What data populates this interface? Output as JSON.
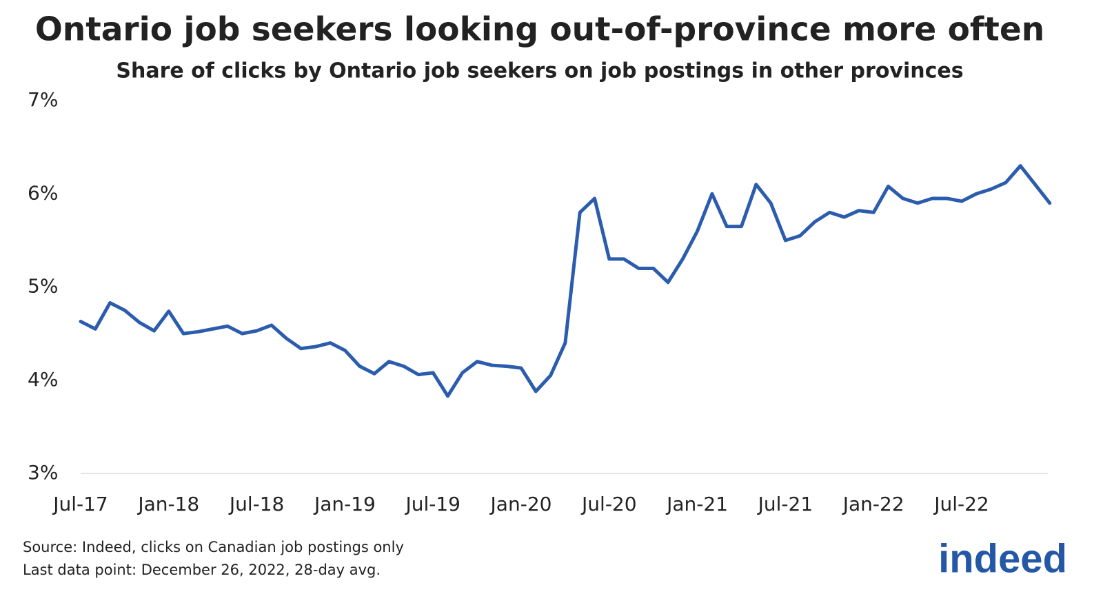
{
  "chart_data": {
    "type": "line",
    "title": "Ontario job seekers looking out-of-province more often",
    "subtitle": "Share of clicks by Ontario job seekers on job postings in other provinces",
    "categories": [
      "Jul-17",
      null,
      null,
      null,
      null,
      null,
      "Jan-18",
      null,
      null,
      null,
      null,
      null,
      "Jul-18",
      null,
      null,
      null,
      null,
      null,
      "Jan-19",
      null,
      null,
      null,
      null,
      null,
      "Jul-19",
      null,
      null,
      null,
      null,
      null,
      "Jan-20",
      null,
      null,
      null,
      null,
      null,
      "Jul-20",
      null,
      null,
      null,
      null,
      null,
      "Jan-21",
      null,
      null,
      null,
      null,
      null,
      "Jul-21",
      null,
      null,
      null,
      null,
      null,
      "Jan-22",
      null,
      null,
      null,
      null,
      null,
      "Jul-22",
      null,
      null,
      null,
      null,
      null,
      null
    ],
    "series": [
      {
        "name": "Share of clicks",
        "color": "#2b5cad",
        "values": [
          4.63,
          4.55,
          4.83,
          4.75,
          4.62,
          4.53,
          4.74,
          4.5,
          4.52,
          4.55,
          4.58,
          4.5,
          4.53,
          4.59,
          4.45,
          4.34,
          4.36,
          4.4,
          4.32,
          4.15,
          4.07,
          4.2,
          4.15,
          4.06,
          4.08,
          3.83,
          4.08,
          4.2,
          4.16,
          4.15,
          4.13,
          3.88,
          4.05,
          4.4,
          5.8,
          5.95,
          5.3,
          5.3,
          5.2,
          5.2,
          5.05,
          5.3,
          5.6,
          6.0,
          5.65,
          5.65,
          6.1,
          5.9,
          5.5,
          5.55,
          5.7,
          5.8,
          5.75,
          5.82,
          5.8,
          6.08,
          5.95,
          5.9,
          5.95,
          5.95,
          5.92,
          6.0,
          6.05,
          6.12,
          6.3,
          6.1,
          5.9
        ]
      }
    ],
    "ylim": [
      3,
      7
    ],
    "yticks": [
      {
        "value": 3,
        "label": "3%"
      },
      {
        "value": 4,
        "label": "4%"
      },
      {
        "value": 5,
        "label": "5%"
      },
      {
        "value": 6,
        "label": "6%"
      },
      {
        "value": 7,
        "label": "7%"
      }
    ],
    "grid": false,
    "source": "Source: Indeed, clicks on Canadian job postings only",
    "note": "Last data point: December 26, 2022, 28-day avg.",
    "logo": "indeed"
  }
}
